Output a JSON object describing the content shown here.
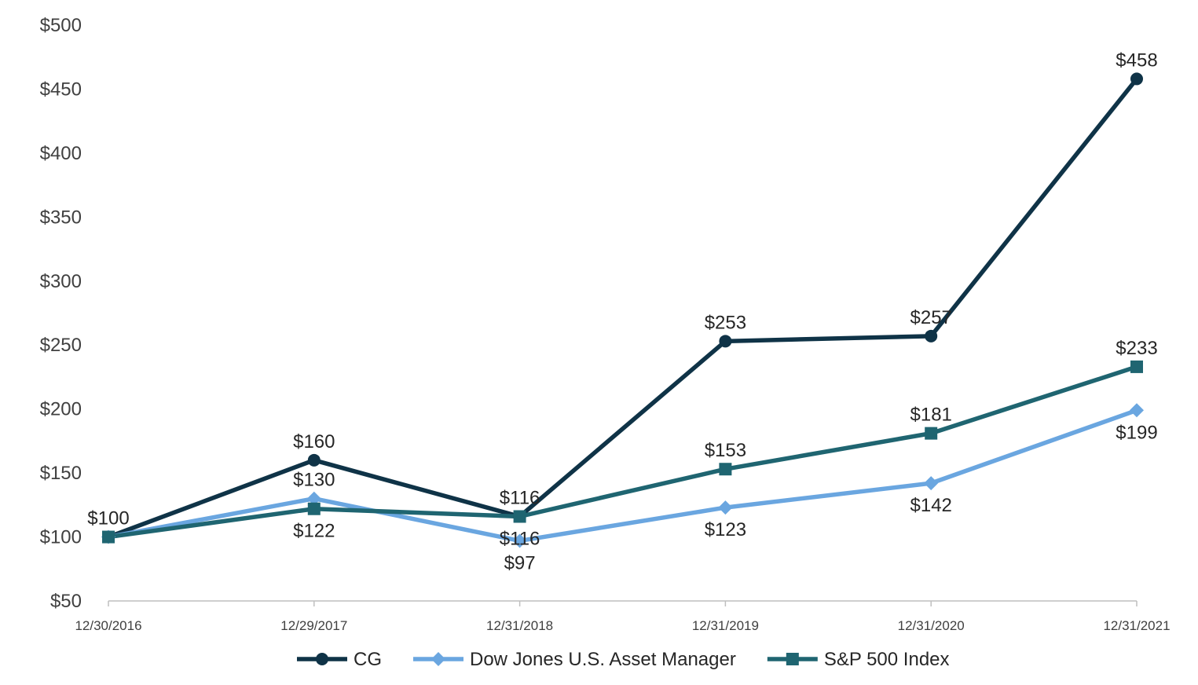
{
  "chart_data": {
    "type": "line",
    "title": "",
    "xlabel": "",
    "ylabel": "",
    "categories": [
      "12/30/2016",
      "12/29/2017",
      "12/31/2018",
      "12/31/2019",
      "12/31/2020",
      "12/31/2021"
    ],
    "ylim": [
      50,
      500
    ],
    "yticks": [
      50,
      100,
      150,
      200,
      250,
      300,
      350,
      400,
      450,
      500
    ],
    "ytick_labels": [
      "$50",
      "$100",
      "$150",
      "$200",
      "$250",
      "$300",
      "$350",
      "$400",
      "$450",
      "$500"
    ],
    "grid": false,
    "legend_position": "bottom",
    "series": [
      {
        "name": "CG",
        "color": "#0f3347",
        "marker": "circle",
        "values": [
          100,
          160,
          116,
          253,
          257,
          458
        ],
        "labels": [
          "$100",
          "$160",
          "$116",
          "$253",
          "$257",
          "$458"
        ],
        "label_side": [
          "above",
          "above",
          "above",
          "above",
          "above",
          "above"
        ]
      },
      {
        "name": "Dow Jones U.S. Asset Manager",
        "color": "#6aa6e0",
        "marker": "diamond",
        "values": [
          100,
          130,
          97,
          123,
          142,
          199
        ],
        "labels": [
          "",
          "$130",
          "$97",
          "$123",
          "$142",
          "$199"
        ],
        "label_side": [
          "above",
          "above",
          "below",
          "below",
          "below",
          "below"
        ]
      },
      {
        "name": "S&P 500 Index",
        "color": "#1f6571",
        "marker": "square",
        "values": [
          100,
          122,
          116,
          153,
          181,
          233
        ],
        "labels": [
          "",
          "$122",
          "$116",
          "$153",
          "$181",
          "$233"
        ],
        "label_side": [
          "above",
          "below",
          "below",
          "above",
          "above",
          "above"
        ]
      }
    ]
  }
}
